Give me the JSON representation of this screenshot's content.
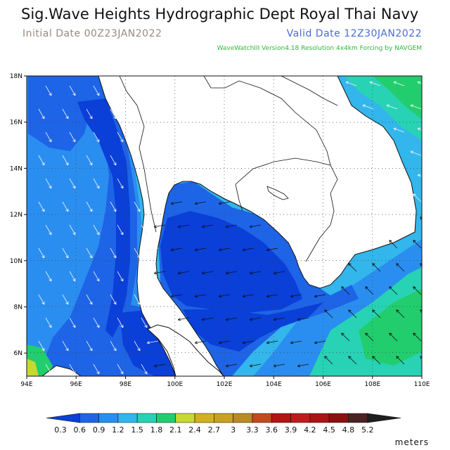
{
  "header": {
    "title": "Sig.Wave Heights Hydrographic Dept Royal Thai Navy",
    "initial_date": "Initial Date 00Z23JAN2022",
    "valid_date": "Valid Date 12Z30JAN2022",
    "model_info": "WaveWatchIII Version4.18 Resolution 4x4km Forcing by NAVGEM"
  },
  "map": {
    "lon_range": [
      94,
      110
    ],
    "lat_range": [
      5,
      18
    ],
    "lon_ticks": [
      "94E",
      "96E",
      "98E",
      "100E",
      "102E",
      "104E",
      "106E",
      "108E",
      "110E"
    ],
    "lat_ticks": [
      "6N",
      "8N",
      "10N",
      "12N",
      "14N",
      "16N",
      "18N"
    ],
    "gridlines": true,
    "grid_style": "dotted",
    "land_color": "#ffffff",
    "field": "significant wave height"
  },
  "legend": {
    "labels": [
      "0.3",
      "0.6",
      "0.9",
      "1.2",
      "1.5",
      "1.8",
      "2.1",
      "2.4",
      "2.7",
      "3",
      "3.3",
      "3.6",
      "3.9",
      "4.2",
      "4.5",
      "4.8",
      "5.2"
    ],
    "colors": [
      "#0a3fd8",
      "#1e64e6",
      "#2a8ef0",
      "#32b6ec",
      "#28d2b4",
      "#22cd6e",
      "#c6d832",
      "#d2b022",
      "#c8a024",
      "#ba8a26",
      "#c24a1e",
      "#b41414",
      "#be1c1c",
      "#aa1414",
      "#8c1010",
      "#4c2222",
      "#1e1e1e"
    ],
    "units": "meters"
  }
}
